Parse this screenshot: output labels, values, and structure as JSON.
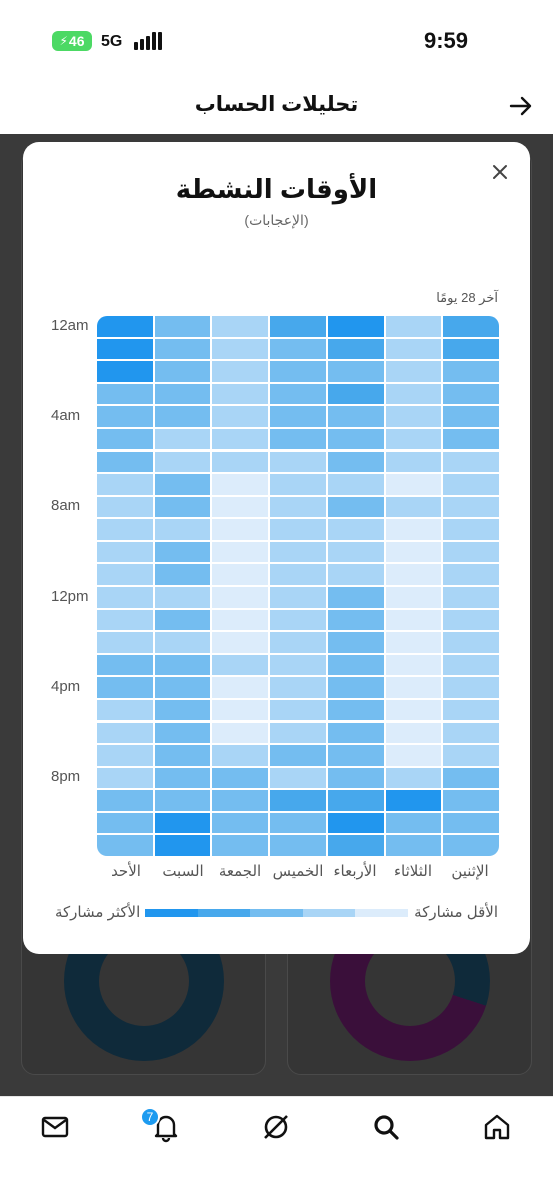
{
  "status_bar": {
    "battery": "46",
    "network": "5G",
    "time": "9:59"
  },
  "header": {
    "title": "تحليلات الحساب"
  },
  "modal": {
    "title": "الأوقات النشطة",
    "subtitle": "(الإعجابات)",
    "period": "آخر 28 يومًا",
    "legend_less": "الأقل مشاركة",
    "legend_more": "الأكثر مشاركة",
    "legend_colors": [
      "#dcecfb",
      "#a9d5f6",
      "#74bdf0",
      "#47a8ec",
      "#2196ee"
    ]
  },
  "chart_data": {
    "type": "heatmap",
    "columns": [
      "الأحد",
      "السبت",
      "الجمعة",
      "الخميس",
      "الأربعاء",
      "الثلاثاء",
      "الإثنين"
    ],
    "row_labels": [
      "12am",
      "4am",
      "8am",
      "12pm",
      "4pm",
      "8pm"
    ],
    "rows": 24,
    "levels": [
      [
        5,
        3,
        2,
        4,
        5,
        2,
        4
      ],
      [
        5,
        3,
        2,
        3,
        4,
        2,
        4
      ],
      [
        5,
        3,
        2,
        3,
        3,
        2,
        3
      ],
      [
        3,
        3,
        2,
        3,
        4,
        2,
        3
      ],
      [
        3,
        3,
        2,
        3,
        3,
        2,
        3
      ],
      [
        3,
        2,
        2,
        3,
        3,
        2,
        3
      ],
      [
        3,
        2,
        2,
        2,
        3,
        2,
        2
      ],
      [
        2,
        3,
        1,
        2,
        2,
        1,
        2
      ],
      [
        2,
        3,
        1,
        2,
        3,
        2,
        2
      ],
      [
        2,
        2,
        1,
        2,
        2,
        1,
        2
      ],
      [
        2,
        3,
        1,
        2,
        2,
        1,
        2
      ],
      [
        2,
        3,
        1,
        2,
        2,
        1,
        2
      ],
      [
        2,
        2,
        1,
        2,
        3,
        1,
        2
      ],
      [
        2,
        3,
        1,
        2,
        3,
        1,
        2
      ],
      [
        2,
        2,
        1,
        2,
        3,
        1,
        2
      ],
      [
        3,
        3,
        2,
        2,
        3,
        1,
        2
      ],
      [
        3,
        3,
        1,
        2,
        3,
        1,
        2
      ],
      [
        2,
        3,
        1,
        2,
        3,
        1,
        2
      ],
      [
        2,
        3,
        1,
        2,
        3,
        1,
        2
      ],
      [
        2,
        3,
        2,
        3,
        3,
        1,
        2
      ],
      [
        2,
        3,
        3,
        2,
        3,
        2,
        3
      ],
      [
        3,
        3,
        3,
        4,
        4,
        5,
        3
      ],
      [
        3,
        5,
        3,
        3,
        5,
        3,
        3
      ],
      [
        3,
        5,
        3,
        3,
        4,
        3,
        3
      ]
    ]
  },
  "bottom_nav": {
    "notifications_badge": "7"
  }
}
